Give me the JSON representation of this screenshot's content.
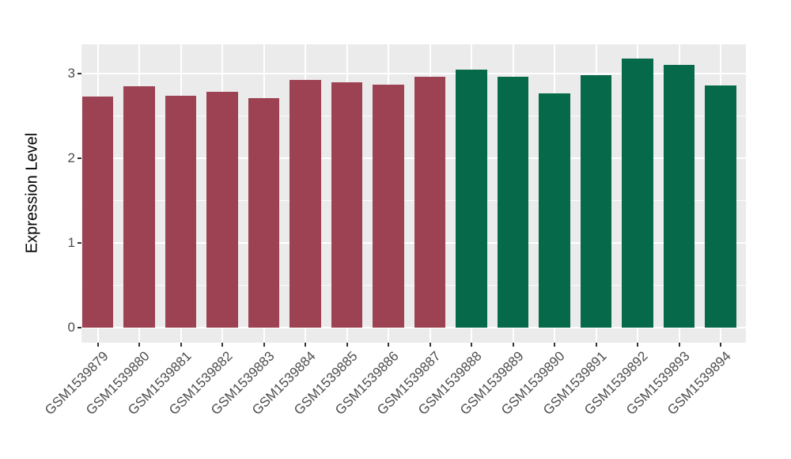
{
  "chart_data": {
    "type": "bar",
    "title": "",
    "xlabel": "",
    "ylabel": "Expression Level",
    "categories": [
      "GSM1539879",
      "GSM1539880",
      "GSM1539881",
      "GSM1539882",
      "GSM1539883",
      "GSM1539884",
      "GSM1539885",
      "GSM1539886",
      "GSM1539887",
      "GSM1539888",
      "GSM1539889",
      "GSM1539890",
      "GSM1539891",
      "GSM1539892",
      "GSM1539893",
      "GSM1539894"
    ],
    "values": [
      2.73,
      2.85,
      2.74,
      2.78,
      2.71,
      2.92,
      2.89,
      2.87,
      2.96,
      3.04,
      2.96,
      2.76,
      2.98,
      3.17,
      3.1,
      2.86
    ],
    "bar_colors": [
      "#9C4252",
      "#9C4252",
      "#9C4252",
      "#9C4252",
      "#9C4252",
      "#9C4252",
      "#9C4252",
      "#9C4252",
      "#9C4252",
      "#06694A",
      "#06694A",
      "#06694A",
      "#06694A",
      "#06694A",
      "#06694A",
      "#06694A"
    ],
    "group_colors": {
      "group1_red": "#9C4252",
      "group2_green": "#06694A"
    },
    "yticks": [
      0,
      1,
      2,
      3
    ],
    "yticks_minor": [
      0.5,
      1.5,
      2.5
    ],
    "ylim": [
      0,
      3.33
    ],
    "grid": "on",
    "legend": "none",
    "panel_background": "#EBEBEB",
    "gridline_color": "#FFFFFF",
    "tick_label_color": "#4D4D4D",
    "x_label_rotation_deg": 45
  }
}
